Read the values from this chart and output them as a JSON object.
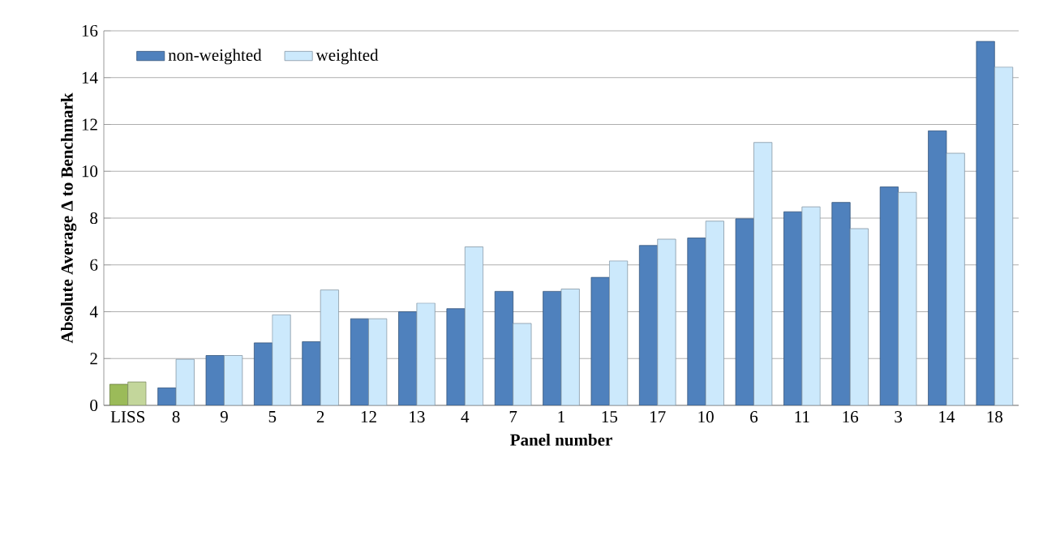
{
  "chart_data": {
    "type": "bar",
    "xlabel": "Panel number",
    "ylabel": "Absolute Average Δ to Benchmark",
    "categories": [
      "LISS",
      "8",
      "9",
      "5",
      "2",
      "12",
      "13",
      "4",
      "7",
      "1",
      "15",
      "17",
      "10",
      "6",
      "11",
      "16",
      "3",
      "14",
      "18"
    ],
    "series": [
      {
        "name": "non-weighted",
        "color": "#4f81bd",
        "colors": [
          "#9bbb59",
          "#4f81bd",
          "#4f81bd",
          "#4f81bd",
          "#4f81bd",
          "#4f81bd",
          "#4f81bd",
          "#4f81bd",
          "#4f81bd",
          "#4f81bd",
          "#4f81bd",
          "#4f81bd",
          "#4f81bd",
          "#4f81bd",
          "#4f81bd",
          "#4f81bd",
          "#4f81bd",
          "#4f81bd",
          "#4f81bd"
        ],
        "values": [
          0.9,
          0.75,
          2.13,
          2.67,
          2.72,
          3.7,
          4.0,
          4.13,
          4.87,
          4.87,
          5.47,
          6.83,
          7.15,
          7.97,
          8.27,
          8.67,
          9.33,
          11.73,
          15.55
        ]
      },
      {
        "name": "weighted",
        "color": "#cce9fc",
        "colors": [
          "#c3d69b",
          "#cce9fc",
          "#cce9fc",
          "#cce9fc",
          "#cce9fc",
          "#cce9fc",
          "#cce9fc",
          "#cce9fc",
          "#cce9fc",
          "#cce9fc",
          "#cce9fc",
          "#cce9fc",
          "#cce9fc",
          "#cce9fc",
          "#cce9fc",
          "#cce9fc",
          "#cce9fc",
          "#cce9fc",
          "#cce9fc"
        ],
        "values": [
          1.0,
          1.97,
          2.13,
          3.87,
          4.93,
          3.7,
          4.37,
          6.77,
          3.5,
          4.97,
          6.17,
          7.1,
          7.87,
          11.23,
          8.48,
          7.55,
          9.1,
          10.77,
          14.45
        ]
      }
    ],
    "ylim": [
      0,
      16
    ],
    "yticks": [
      0,
      2,
      4,
      6,
      8,
      10,
      12,
      14,
      16
    ],
    "grid": "y",
    "legend": "top left"
  }
}
